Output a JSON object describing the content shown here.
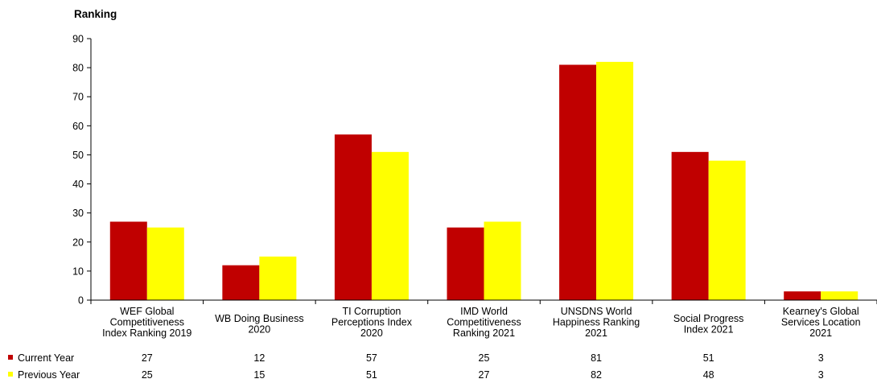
{
  "chart_data": {
    "type": "bar",
    "ylabel": "Ranking",
    "ylim": [
      0,
      90
    ],
    "yticks": [
      0,
      10,
      20,
      30,
      40,
      50,
      60,
      70,
      80,
      90
    ],
    "grid": false,
    "legend": "bottom-left table",
    "categories": [
      [
        "WEF Global",
        "Competitiveness",
        "Index Ranking 2019"
      ],
      [
        "WB Doing Business",
        "2020"
      ],
      [
        "TI Corruption",
        "Perceptions Index",
        "2020"
      ],
      [
        "IMD World",
        "Competitiveness",
        "Ranking 2021"
      ],
      [
        "UNSDNS World",
        "Happiness Ranking",
        "2021"
      ],
      [
        "Social Progress",
        "Index 2021"
      ],
      [
        "Kearney's Global",
        "Services Location",
        "2021"
      ]
    ],
    "series": [
      {
        "name": "Current Year",
        "color": "#c00000",
        "values": [
          27,
          12,
          57,
          25,
          81,
          51,
          3
        ]
      },
      {
        "name": "Previous Year",
        "color": "#ffff00",
        "values": [
          25,
          15,
          51,
          27,
          82,
          48,
          3
        ]
      }
    ]
  }
}
